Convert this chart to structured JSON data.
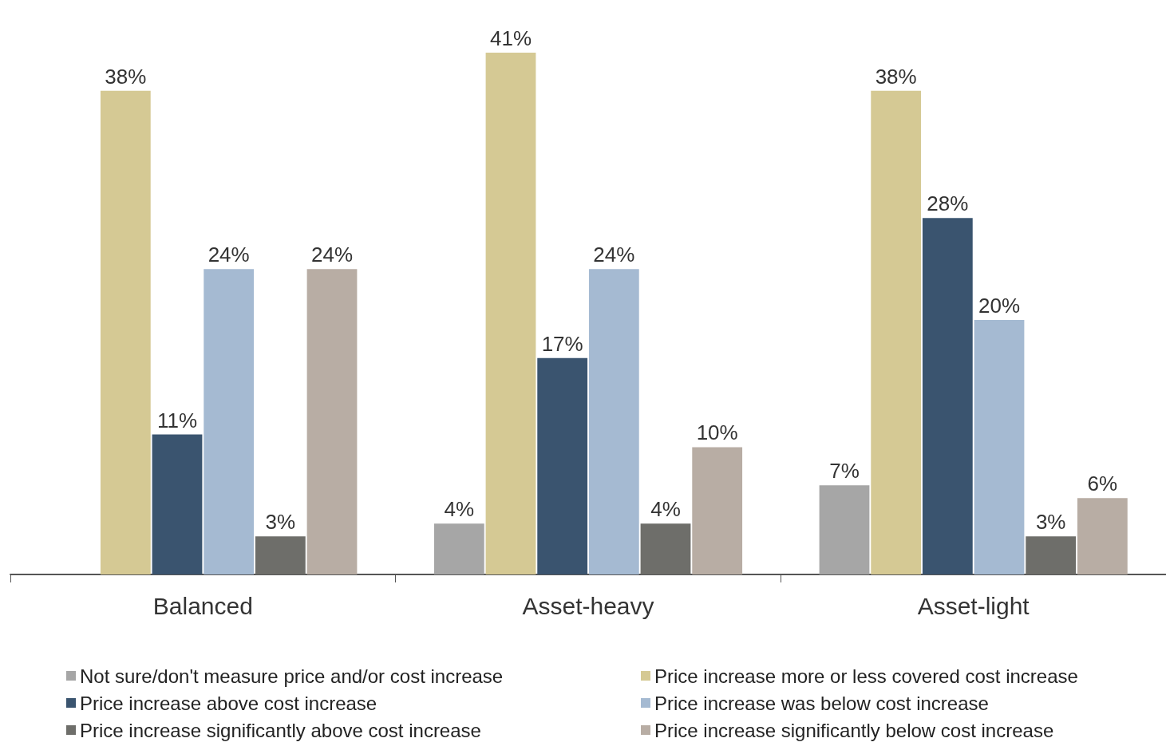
{
  "chart_data": {
    "type": "bar",
    "categories": [
      "Balanced",
      "Asset-heavy",
      "Asset-light"
    ],
    "legend": "bottom",
    "series": [
      {
        "name": "Not sure/don't measure price and/or cost increase",
        "color": "#a6a6a6",
        "values": [
          null,
          4,
          7
        ],
        "value_labels": [
          null,
          "4%",
          "7%"
        ]
      },
      {
        "name": "Price increase more or less covered cost increase",
        "color": "#d5c994",
        "values": [
          38,
          41,
          38
        ],
        "value_labels": [
          "38%",
          "41%",
          "38%"
        ]
      },
      {
        "name": "Price increase above cost increase",
        "color": "#3a546f",
        "values": [
          11,
          17,
          28
        ],
        "value_labels": [
          "11%",
          "17%",
          "28%"
        ]
      },
      {
        "name": "Price increase was below cost increase",
        "color": "#a5bad2",
        "values": [
          24,
          24,
          20
        ],
        "value_labels": [
          "24%",
          "24%",
          "20%"
        ]
      },
      {
        "name": "Price increase significantly above cost increase",
        "color": "#6e6e6a",
        "values": [
          3,
          4,
          3
        ],
        "value_labels": [
          "3%",
          "4%",
          "3%"
        ]
      },
      {
        "name": "Price increase significantly below cost increase",
        "color": "#b8ada4",
        "values": [
          24,
          10,
          6
        ],
        "value_labels": [
          "24%",
          "10%",
          "6%"
        ]
      }
    ]
  }
}
